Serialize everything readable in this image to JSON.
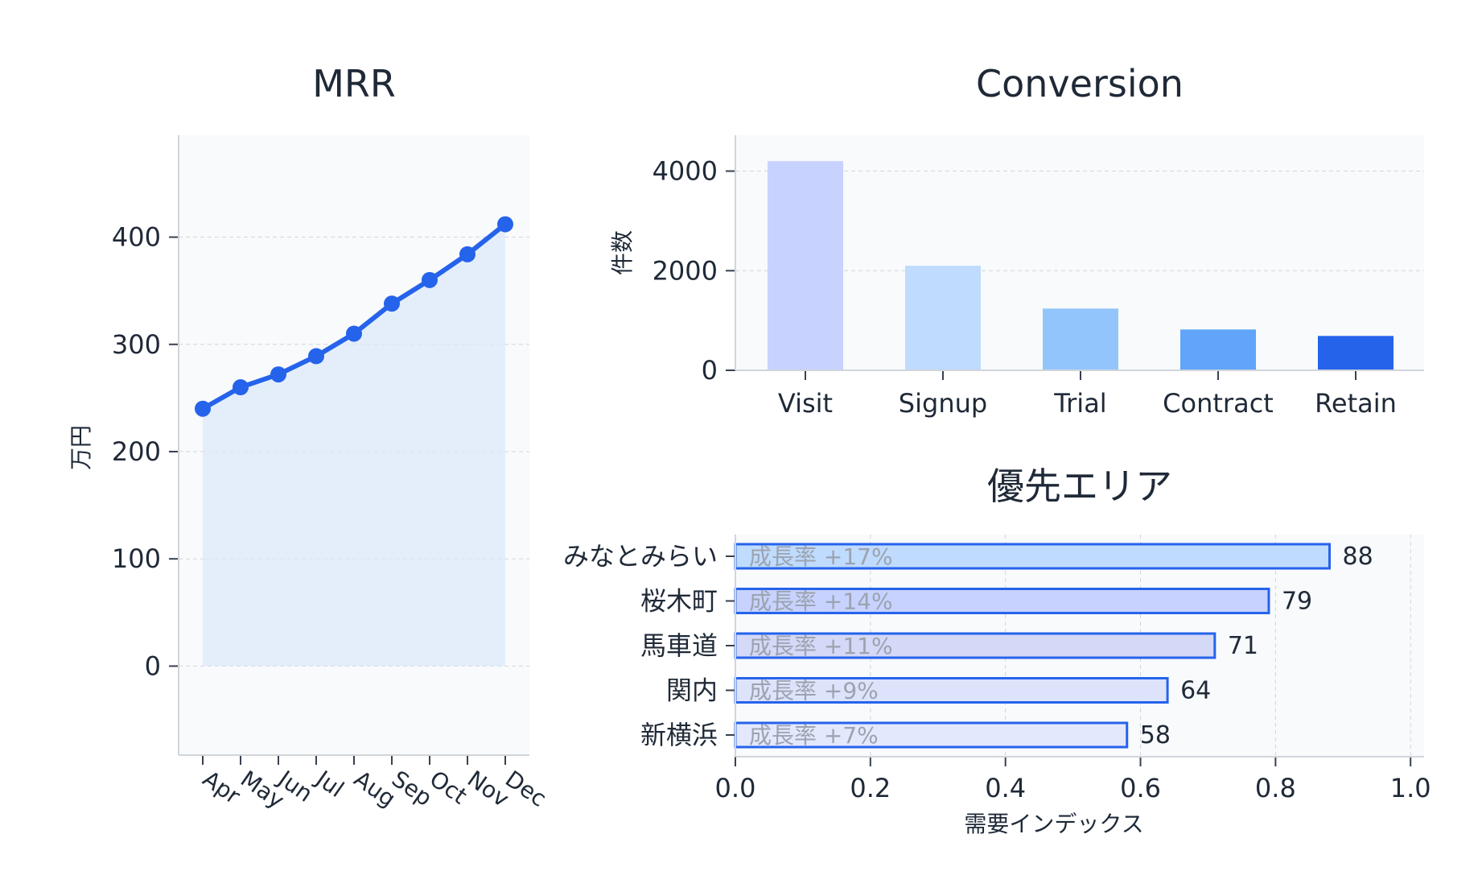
{
  "chart_data": [
    {
      "type": "line",
      "title": "MRR",
      "xlabel": "",
      "ylabel": "万円",
      "categories": [
        "Apr",
        "May",
        "Jun",
        "Jul",
        "Aug",
        "Sep",
        "Oct",
        "Nov",
        "Dec"
      ],
      "series": [
        {
          "values": [
            240,
            260,
            272,
            289,
            310,
            338,
            360,
            384,
            412
          ]
        }
      ],
      "ylim": [
        -83,
        495
      ],
      "yticks": [
        "0",
        "100",
        "200",
        "300",
        "400"
      ],
      "grid": "y",
      "area_fill": true,
      "line_color": "#2563eb",
      "fill_color": "#dbe8fb"
    },
    {
      "type": "bar",
      "title": "Conversion",
      "xlabel": "",
      "ylabel": "件数",
      "categories": [
        "Visit",
        "Signup",
        "Trial",
        "Contract",
        "Retain"
      ],
      "values": [
        4200,
        2100,
        1240,
        820,
        690
      ],
      "ylim": [
        0,
        4720
      ],
      "yticks": [
        "0",
        "2000",
        "4000"
      ],
      "grid": "y",
      "colors": [
        "#c7d2fe",
        "#bfdbfe",
        "#93c5fd",
        "#60a5fa",
        "#2563eb"
      ]
    },
    {
      "type": "bar",
      "orientation": "horizontal",
      "title": "優先エリア",
      "xlabel": "需要インデックス",
      "ylabel": "",
      "categories": [
        "みなとみらい",
        "桜木町",
        "馬車道",
        "関内",
        "新横浜"
      ],
      "values": [
        0.88,
        0.79,
        0.71,
        0.64,
        0.58
      ],
      "value_labels": [
        "88",
        "79",
        "71",
        "64",
        "58"
      ],
      "inner_labels": [
        "成長率 +17%",
        "成長率 +14%",
        "成長率 +11%",
        "成長率 +9%",
        "成長率 +7%"
      ],
      "xlim": [
        0,
        1.02
      ],
      "xticks": [
        "0.0",
        "0.2",
        "0.4",
        "0.6",
        "0.8",
        "1.0"
      ],
      "grid": "x",
      "colors": [
        "#bfdbfe",
        "#c7d2fe",
        "#d4d9f8",
        "#dde3fb",
        "#e4e8fc"
      ],
      "edge_color": "#2563eb"
    }
  ],
  "style": {
    "panel_bg": "#f8fafc",
    "grid_color": "#d1d5db",
    "spine_color": "#d1d5db"
  }
}
